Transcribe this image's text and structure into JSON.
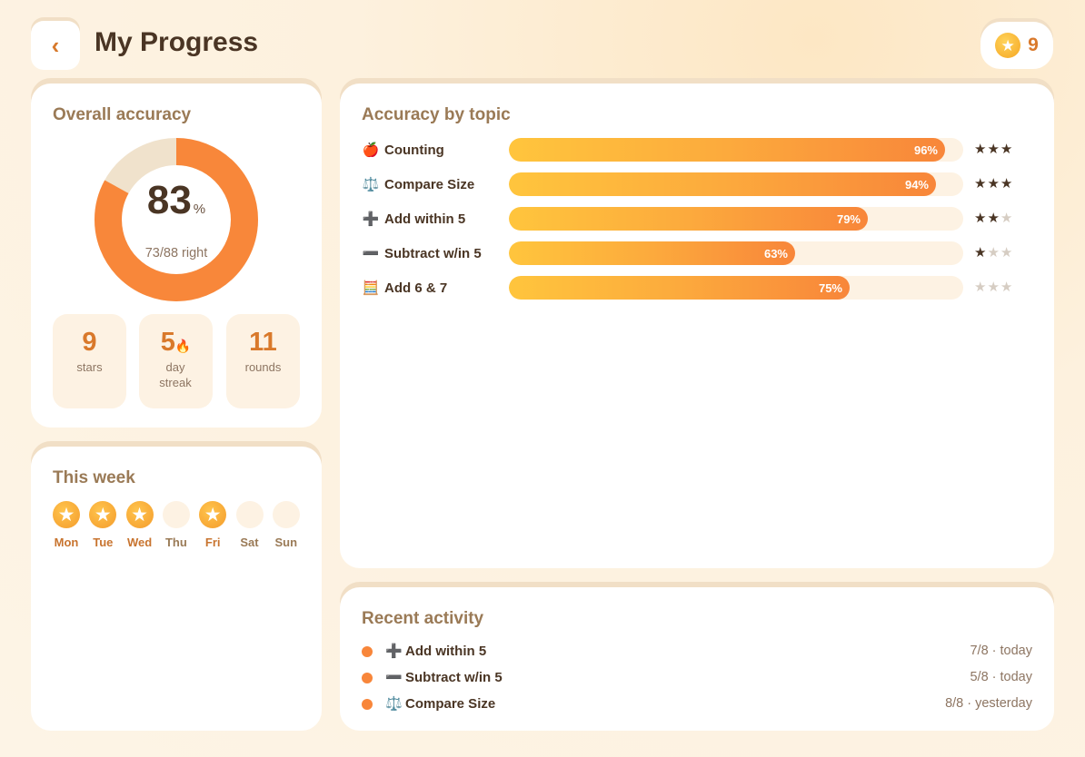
{
  "header": {
    "back_icon": "chevron-left-icon",
    "back_glyph": "‹",
    "title": "My Progress",
    "star_icon": "star-coin-icon",
    "star_count": "9"
  },
  "overall": {
    "title": "Overall accuracy",
    "percent": "83",
    "percent_sign": "%",
    "percent_value": 83,
    "right_text": "73/88 right",
    "colors": {
      "filled": "#f8873a",
      "remaining": "#f0e2cc"
    },
    "stats": [
      {
        "value": "9",
        "label": "stars"
      },
      {
        "value": "5",
        "icon": "🔥",
        "label": "day streak"
      },
      {
        "value": "11",
        "label": "rounds"
      }
    ]
  },
  "week": {
    "title": "This week",
    "days": [
      {
        "label": "Mon",
        "earned": true
      },
      {
        "label": "Tue",
        "earned": true
      },
      {
        "label": "Wed",
        "earned": true
      },
      {
        "label": "Thu",
        "earned": false
      },
      {
        "label": "Fri",
        "earned": true
      },
      {
        "label": "Sat",
        "earned": false
      },
      {
        "label": "Sun",
        "earned": false
      }
    ]
  },
  "topics": {
    "title": "Accuracy by topic",
    "items": [
      {
        "icon": "🍎",
        "icon_name": "apple-icon",
        "name": "Counting",
        "percent": 96,
        "percent_label": "96%",
        "stars": 3
      },
      {
        "icon": "⚖️",
        "icon_name": "scale-icon",
        "name": "Compare Size",
        "percent": 94,
        "percent_label": "94%",
        "stars": 3
      },
      {
        "icon": "➕",
        "icon_name": "plus-icon",
        "name": "Add within 5",
        "percent": 79,
        "percent_label": "79%",
        "stars": 2
      },
      {
        "icon": "➖",
        "icon_name": "minus-icon",
        "name": "Subtract w/in 5",
        "percent": 63,
        "percent_label": "63%",
        "stars": 1
      },
      {
        "icon": "🧮",
        "icon_name": "abacus-icon",
        "name": "Add 6 & 7",
        "percent": 75,
        "percent_label": "75%",
        "stars": 0
      }
    ]
  },
  "recent": {
    "title": "Recent activity",
    "items": [
      {
        "icon": "➕",
        "icon_name": "plus-icon",
        "name": "Add within 5",
        "meta": "7/8 · today"
      },
      {
        "icon": "➖",
        "icon_name": "minus-icon",
        "name": "Subtract w/in 5",
        "meta": "5/8 · today"
      },
      {
        "icon": "⚖️",
        "icon_name": "scale-icon",
        "name": "Compare Size",
        "meta": "8/8 · yesterday"
      }
    ]
  }
}
